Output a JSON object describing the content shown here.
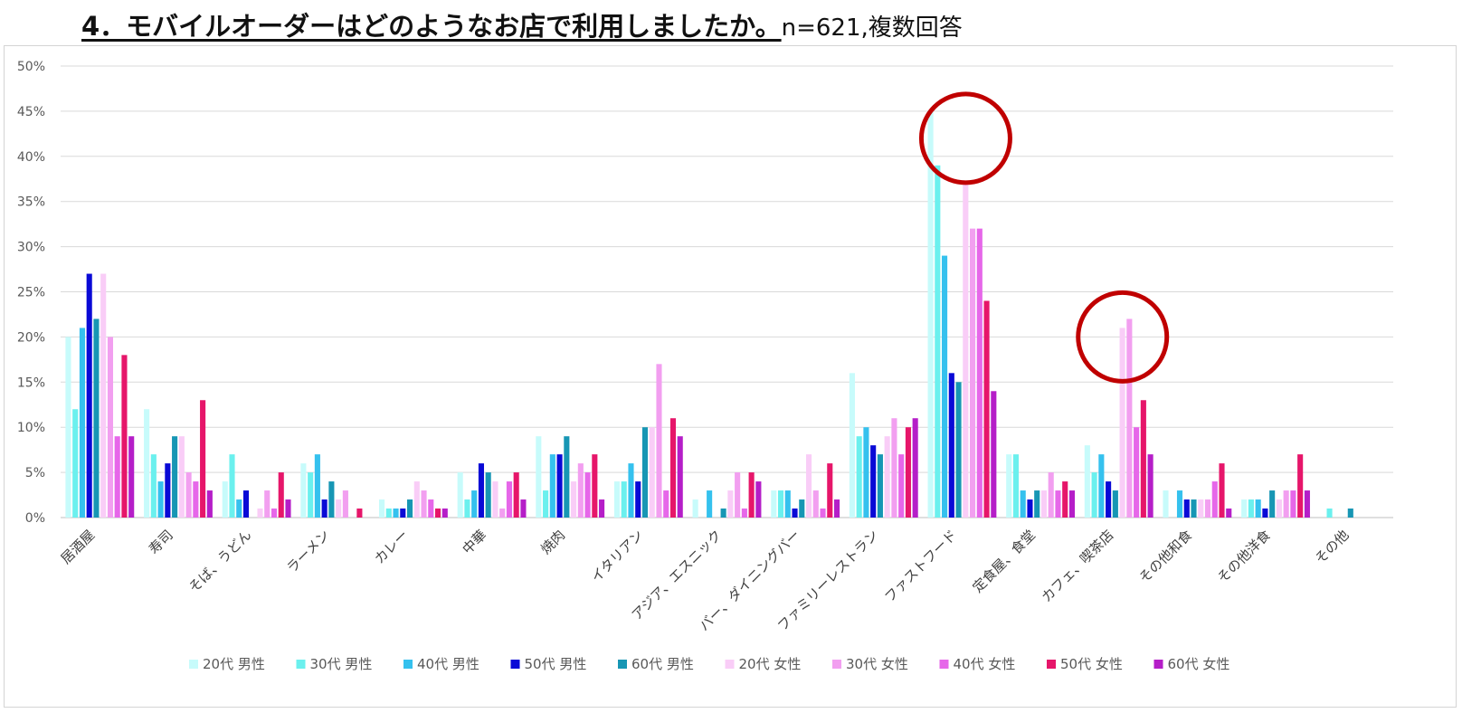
{
  "header": {
    "title": "4．モバイルオーダーはどのようなお店で利用しましたか。",
    "subtitle": "n=621,複数回答"
  },
  "chart_data": {
    "type": "bar",
    "ylim": [
      0,
      50
    ],
    "y_ticks": [
      "0%",
      "5%",
      "10%",
      "15%",
      "20%",
      "25%",
      "30%",
      "35%",
      "40%",
      "45%",
      "50%"
    ],
    "grid": true,
    "legend_position": "bottom",
    "categories": [
      "居酒屋",
      "寿司",
      "そば、うどん",
      "ラーメン",
      "カレー",
      "中華",
      "焼肉",
      "イタリアン",
      "アジア、エスニック",
      "バー、ダイニングバー",
      "ファミリーレストラン",
      "ファストフード",
      "定食屋、食堂",
      "カフェ、喫茶店",
      "その他和食",
      "その他洋食",
      "その他"
    ],
    "series": [
      {
        "name": "20代 男性",
        "color": "#c7fbfb",
        "values": [
          20,
          12,
          4,
          6,
          2,
          5,
          9,
          4,
          2,
          3,
          16,
          45,
          7,
          8,
          3,
          2,
          0
        ]
      },
      {
        "name": "30代 男性",
        "color": "#6bf0ee",
        "values": [
          12,
          7,
          7,
          5,
          1,
          2,
          3,
          4,
          0,
          3,
          9,
          39,
          7,
          5,
          0,
          2,
          1
        ]
      },
      {
        "name": "40代 男性",
        "color": "#35c1ee",
        "values": [
          21,
          4,
          2,
          7,
          1,
          3,
          7,
          6,
          3,
          3,
          10,
          29,
          3,
          7,
          3,
          2,
          0
        ]
      },
      {
        "name": "50代 男性",
        "color": "#0a0ad6",
        "values": [
          27,
          6,
          3,
          2,
          1,
          6,
          7,
          4,
          0,
          1,
          8,
          16,
          2,
          4,
          2,
          1,
          0
        ]
      },
      {
        "name": "60代 男性",
        "color": "#1796b4",
        "values": [
          22,
          9,
          0,
          4,
          2,
          5,
          9,
          10,
          1,
          2,
          7,
          15,
          3,
          3,
          2,
          3,
          1
        ]
      },
      {
        "name": "20代 女性",
        "color": "#f9cdf7",
        "values": [
          27,
          9,
          1,
          2,
          4,
          4,
          4,
          10,
          3,
          7,
          9,
          37,
          3,
          21,
          2,
          2,
          0
        ]
      },
      {
        "name": "30代 女性",
        "color": "#f29ff0",
        "values": [
          20,
          5,
          3,
          3,
          3,
          1,
          6,
          17,
          5,
          3,
          11,
          32,
          5,
          22,
          2,
          3,
          0
        ]
      },
      {
        "name": "40代 女性",
        "color": "#e667e9",
        "values": [
          9,
          4,
          1,
          0,
          2,
          4,
          5,
          3,
          1,
          1,
          7,
          32,
          3,
          10,
          4,
          3,
          0
        ]
      },
      {
        "name": "50代 女性",
        "color": "#e6166a",
        "values": [
          18,
          13,
          5,
          1,
          1,
          5,
          7,
          11,
          5,
          6,
          10,
          24,
          4,
          13,
          6,
          7,
          0
        ]
      },
      {
        "name": "60代 女性",
        "color": "#b51ec8",
        "values": [
          9,
          3,
          2,
          0,
          1,
          2,
          2,
          9,
          4,
          2,
          11,
          14,
          3,
          7,
          1,
          3,
          0
        ]
      }
    ],
    "highlight_circles": [
      {
        "category": "ファストフード",
        "value": 42,
        "color": "#c00000"
      },
      {
        "category": "カフェ、喫茶店",
        "value": 20,
        "color": "#c00000"
      }
    ]
  }
}
